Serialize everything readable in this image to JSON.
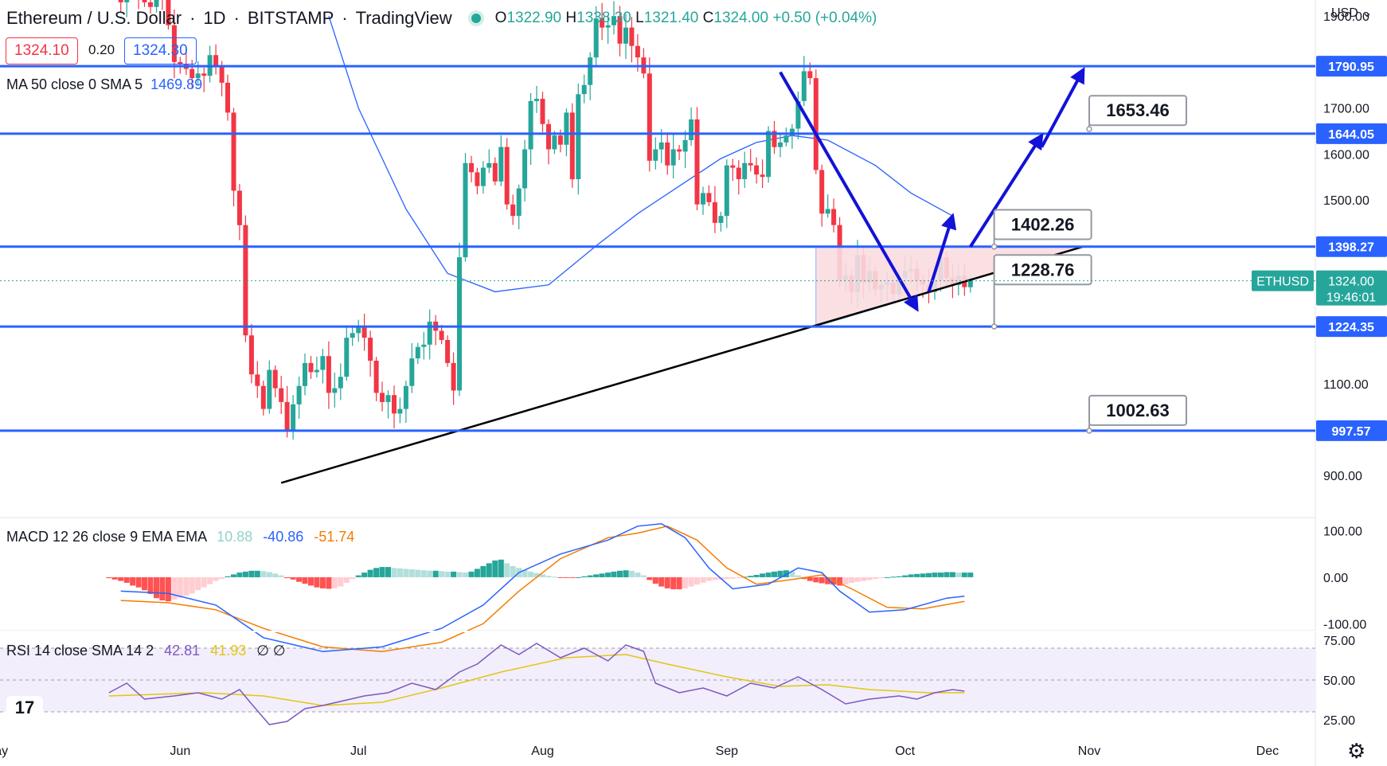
{
  "header": {
    "symbol": "Ethereum / U.S. Dollar",
    "interval": "1D",
    "exchange": "BITSTAMP",
    "source": "TradingView",
    "open_label": "O",
    "open": "1322.90",
    "high_label": "H",
    "high": "1338.30",
    "low_label": "L",
    "low": "1321.40",
    "close_label": "C",
    "close": "1324.00",
    "change": "+0.50 (+0.04%)",
    "bid": "1324.10",
    "spread": "0.20",
    "ask": "1324.30",
    "currency": "USD"
  },
  "indicators": {
    "ma_label": "MA 50 close 0 SMA 5",
    "ma_value": "1469.89",
    "macd_label": "MACD 12 26 close 9 EMA EMA",
    "macd_hist": "10.88",
    "macd_line": "-40.86",
    "macd_signal": "-51.74",
    "rsi_label": "RSI 14 close SMA 14 2",
    "rsi_value": "42.81",
    "rsi_sma": "41.93",
    "rsi_extra": "∅ ∅"
  },
  "colors": {
    "up": "#26a69a",
    "down": "#f23645",
    "blue": "#2962ff",
    "ma": "#2962ff",
    "macd_line": "#2962ff",
    "macd_signal": "#f57c00",
    "rsi": "#7e57c2",
    "rsi_sma": "#e3c613",
    "arrow": "#1212d8",
    "triangle_fill": "#fadbe0",
    "triangle_border": "#89b4fa"
  },
  "chart_data": [
    {
      "type": "candlestick",
      "title": "Ethereum / U.S. Dollar · 1D · BITSTAMP",
      "x_ticks": [
        "May",
        "Jun",
        "Jul",
        "Aug",
        "Sep",
        "Oct",
        "Nov",
        "Dec"
      ],
      "y_ticks": [
        "1900.00",
        "1700.00",
        "1600.00",
        "1500.00",
        "1100.00",
        "900.00"
      ],
      "ylim": [
        812,
        1935
      ],
      "start_date": "2022-05-20",
      "closes": [
        1980,
        1970,
        1930,
        1960,
        1985,
        1945,
        1930,
        1920,
        1955,
        1935,
        1880,
        1800,
        1795,
        1785,
        1765,
        1775,
        1770,
        1815,
        1790,
        1755,
        1690,
        1520,
        1445,
        1205,
        1120,
        1095,
        1045,
        1130,
        1090,
        1060,
        1000,
        1055,
        1095,
        1145,
        1125,
        1130,
        1160,
        1080,
        1090,
        1115,
        1200,
        1210,
        1225,
        1200,
        1150,
        1080,
        1060,
        1075,
        1035,
        1045,
        1095,
        1155,
        1180,
        1185,
        1235,
        1215,
        1195,
        1145,
        1085,
        1375,
        1580,
        1560,
        1530,
        1570,
        1580,
        1540,
        1615,
        1490,
        1465,
        1525,
        1610,
        1715,
        1720,
        1665,
        1610,
        1640,
        1620,
        1690,
        1545,
        1730,
        1750,
        1810,
        1895,
        1875,
        1880,
        1900,
        1840,
        1875,
        1835,
        1810,
        1775,
        1585,
        1610,
        1625,
        1575,
        1610,
        1605,
        1630,
        1675,
        1490,
        1515,
        1495,
        1450,
        1465,
        1575,
        1570,
        1545,
        1580,
        1575,
        1555,
        1550,
        1650,
        1615,
        1625,
        1640,
        1655,
        1715,
        1780,
        1765,
        1565,
        1470,
        1480,
        1445,
        1325,
        1335,
        1300,
        1380,
        1320,
        1345,
        1305,
        1315,
        1320,
        1295,
        1330,
        1345,
        1350,
        1325,
        1315,
        1300,
        1325,
        1375,
        1330,
        1315,
        1335,
        1310,
        1325
      ],
      "ma50_label": "MA 50 close 0 SMA 5",
      "ma50_points": [
        [
          "2022-06-26",
          1900
        ],
        [
          "2022-07-01",
          1700
        ],
        [
          "2022-07-09",
          1480
        ],
        [
          "2022-07-16",
          1340
        ],
        [
          "2022-07-24",
          1300
        ],
        [
          "2022-08-02",
          1315
        ],
        [
          "2022-08-10",
          1400
        ],
        [
          "2022-08-17",
          1470
        ],
        [
          "2022-08-24",
          1530
        ],
        [
          "2022-08-31",
          1590
        ],
        [
          "2022-09-06",
          1625
        ],
        [
          "2022-09-12",
          1640
        ],
        [
          "2022-09-18",
          1630
        ],
        [
          "2022-09-26",
          1575
        ],
        [
          "2022-10-02",
          1515
        ],
        [
          "2022-10-09",
          1465
        ]
      ],
      "horizontal_levels": [
        "1790.95",
        "1644.05",
        "1398.27",
        "1224.35",
        "997.57"
      ],
      "annotations": [
        "1653.46",
        "1402.26",
        "1228.76",
        "1002.63"
      ],
      "last_price_label": "ETHUSD",
      "last_price": "1324.00",
      "countdown": "19:46:01"
    },
    {
      "type": "bar",
      "title": "MACD 12 26 close 9 EMA EMA",
      "y_ticks": [
        "100.00",
        "0.00",
        "-100.00"
      ],
      "ylim": [
        -115,
        125
      ],
      "histogram": [
        -2,
        -5,
        -8,
        -12,
        -18,
        -22,
        -28,
        -36,
        -45,
        -50,
        -52,
        -48,
        -44,
        -40,
        -35,
        -28,
        -22,
        -15,
        -8,
        -4,
        2,
        6,
        10,
        12,
        14,
        14,
        13,
        11,
        8,
        4,
        -2,
        -5,
        -10,
        -14,
        -18,
        -22,
        -24,
        -25,
        -24,
        -20,
        -12,
        -4,
        4,
        10,
        16,
        20,
        22,
        22,
        20,
        19,
        18,
        17,
        16,
        15,
        14,
        14,
        13,
        12,
        12,
        11,
        10,
        12,
        18,
        24,
        30,
        36,
        38,
        30,
        24,
        20,
        16,
        12,
        9,
        6,
        3,
        1,
        -1,
        -1,
        -1,
        0,
        2,
        4,
        6,
        8,
        10,
        12,
        14,
        15,
        14,
        10,
        4,
        -6,
        -14,
        -20,
        -24,
        -26,
        -26,
        -24,
        -20,
        -16,
        -12,
        -8,
        -6,
        -5,
        -4,
        -3,
        -2,
        1,
        3,
        5,
        8,
        10,
        12,
        14,
        15,
        12,
        4,
        -4,
        -8,
        -11,
        -13,
        -15,
        -16,
        -18,
        -16,
        -12,
        -10,
        -8,
        -6,
        -4,
        -2,
        0,
        1,
        2,
        4,
        6,
        7,
        8,
        9,
        10,
        10,
        11,
        11,
        10,
        10,
        10
      ],
      "macd_line_points": [
        [
          "2022-05-22",
          -30
        ],
        [
          "2022-05-30",
          -35
        ],
        [
          "2022-06-07",
          -60
        ],
        [
          "2022-06-15",
          -130
        ],
        [
          "2022-06-25",
          -160
        ],
        [
          "2022-07-05",
          -150
        ],
        [
          "2022-07-15",
          -110
        ],
        [
          "2022-07-22",
          -60
        ],
        [
          "2022-07-28",
          10
        ],
        [
          "2022-08-04",
          50
        ],
        [
          "2022-08-12",
          80
        ],
        [
          "2022-08-17",
          110
        ],
        [
          "2022-08-21",
          115
        ],
        [
          "2022-08-25",
          85
        ],
        [
          "2022-08-29",
          20
        ],
        [
          "2022-09-02",
          -25
        ],
        [
          "2022-09-08",
          -15
        ],
        [
          "2022-09-13",
          20
        ],
        [
          "2022-09-17",
          10
        ],
        [
          "2022-09-20",
          -30
        ],
        [
          "2022-09-25",
          -75
        ],
        [
          "2022-10-01",
          -70
        ],
        [
          "2022-10-08",
          -45
        ],
        [
          "2022-10-11",
          -41
        ]
      ],
      "macd_signal_points": [
        [
          "2022-05-22",
          -50
        ],
        [
          "2022-05-30",
          -55
        ],
        [
          "2022-06-07",
          -70
        ],
        [
          "2022-06-15",
          -110
        ],
        [
          "2022-06-25",
          -150
        ],
        [
          "2022-07-05",
          -160
        ],
        [
          "2022-07-15",
          -140
        ],
        [
          "2022-07-22",
          -100
        ],
        [
          "2022-07-28",
          -30
        ],
        [
          "2022-08-04",
          40
        ],
        [
          "2022-08-12",
          85
        ],
        [
          "2022-08-17",
          95
        ],
        [
          "2022-08-22",
          110
        ],
        [
          "2022-08-27",
          80
        ],
        [
          "2022-09-01",
          20
        ],
        [
          "2022-09-06",
          -15
        ],
        [
          "2022-09-12",
          -5
        ],
        [
          "2022-09-17",
          5
        ],
        [
          "2022-09-22",
          -25
        ],
        [
          "2022-09-28",
          -65
        ],
        [
          "2022-10-04",
          -68
        ],
        [
          "2022-10-11",
          -52
        ]
      ]
    },
    {
      "type": "line",
      "title": "RSI 14 close SMA 14 2",
      "y_ticks": [
        "75.00",
        "50.00",
        "25.00"
      ],
      "ylim": [
        19,
        81
      ],
      "band": [
        30,
        70
      ],
      "rsi_points": [
        [
          "2022-05-20",
          42
        ],
        [
          "2022-05-23",
          48
        ],
        [
          "2022-05-26",
          38
        ],
        [
          "2022-05-31",
          40
        ],
        [
          "2022-06-04",
          42
        ],
        [
          "2022-06-08",
          38
        ],
        [
          "2022-06-11",
          44
        ],
        [
          "2022-06-13",
          35
        ],
        [
          "2022-06-16",
          22
        ],
        [
          "2022-06-19",
          24
        ],
        [
          "2022-06-22",
          32
        ],
        [
          "2022-06-25",
          34
        ],
        [
          "2022-07-02",
          40
        ],
        [
          "2022-07-06",
          42
        ],
        [
          "2022-07-10",
          48
        ],
        [
          "2022-07-14",
          44
        ],
        [
          "2022-07-18",
          55
        ],
        [
          "2022-07-21",
          60
        ],
        [
          "2022-07-25",
          72
        ],
        [
          "2022-07-28",
          66
        ],
        [
          "2022-07-31",
          73
        ],
        [
          "2022-08-04",
          64
        ],
        [
          "2022-08-08",
          70
        ],
        [
          "2022-08-12",
          62
        ],
        [
          "2022-08-15",
          72
        ],
        [
          "2022-08-18",
          68
        ],
        [
          "2022-08-20",
          48
        ],
        [
          "2022-08-24",
          42
        ],
        [
          "2022-08-28",
          45
        ],
        [
          "2022-09-01",
          40
        ],
        [
          "2022-09-05",
          48
        ],
        [
          "2022-09-09",
          45
        ],
        [
          "2022-09-13",
          52
        ],
        [
          "2022-09-17",
          44
        ],
        [
          "2022-09-21",
          35
        ],
        [
          "2022-09-25",
          38
        ],
        [
          "2022-09-30",
          40
        ],
        [
          "2022-10-03",
          38
        ],
        [
          "2022-10-06",
          42
        ],
        [
          "2022-10-09",
          44
        ],
        [
          "2022-10-11",
          43
        ]
      ],
      "rsi_sma_points": [
        [
          "2022-05-20",
          40
        ],
        [
          "2022-06-05",
          42
        ],
        [
          "2022-06-15",
          40
        ],
        [
          "2022-06-25",
          34
        ],
        [
          "2022-07-05",
          36
        ],
        [
          "2022-07-15",
          45
        ],
        [
          "2022-07-25",
          55
        ],
        [
          "2022-08-05",
          64
        ],
        [
          "2022-08-15",
          66
        ],
        [
          "2022-08-22",
          60
        ],
        [
          "2022-09-01",
          52
        ],
        [
          "2022-09-10",
          46
        ],
        [
          "2022-09-18",
          47
        ],
        [
          "2022-09-25",
          44
        ],
        [
          "2022-10-05",
          42
        ],
        [
          "2022-10-11",
          42
        ]
      ]
    }
  ]
}
